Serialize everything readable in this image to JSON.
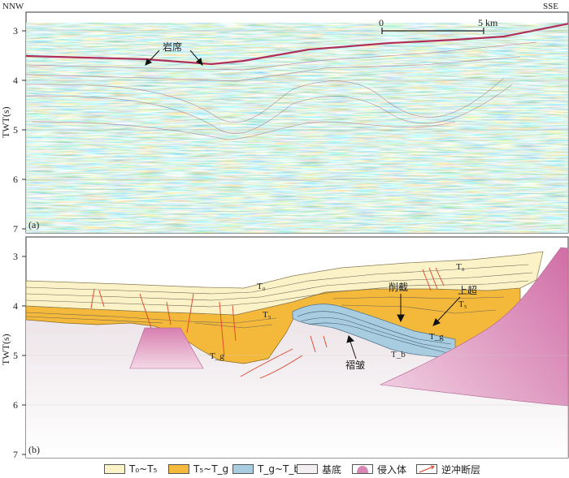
{
  "directions": {
    "left": "NNW",
    "right": "SSE"
  },
  "scale_bar": {
    "start": "0",
    "end": "5 km"
  },
  "panel_a": {
    "tag": "(a)",
    "ylabel": "TWT(s)",
    "ticks": [
      "3",
      "4",
      "5",
      "6",
      "7"
    ],
    "annotation": "岩席"
  },
  "panel_b": {
    "tag": "(b)",
    "ylabel": "TWT(s)",
    "ticks": [
      "3",
      "4",
      "5",
      "6",
      "7"
    ],
    "labels": {
      "T0_left": "T₀",
      "T0_right": "T₀",
      "T5_left": "T₅",
      "T5_right": "T₅",
      "Tg_left": "T_g",
      "Tg_right": "T_g",
      "Tb": "T_b",
      "truncation": "削截",
      "onlap": "上超",
      "fold": "褶皱"
    }
  },
  "legend": [
    {
      "label": "T₀~T₅",
      "color": "#fbf2c8"
    },
    {
      "label": "T₅~T_g",
      "color": "#f4b93a"
    },
    {
      "label": "T_g~T_b",
      "color": "#a9cde0"
    },
    {
      "label": "基底",
      "color": "#f3eef1"
    },
    {
      "label": "侵入体",
      "color": "#d986b4"
    },
    {
      "label": "逆冲断层",
      "color": "#e0402a"
    }
  ]
}
